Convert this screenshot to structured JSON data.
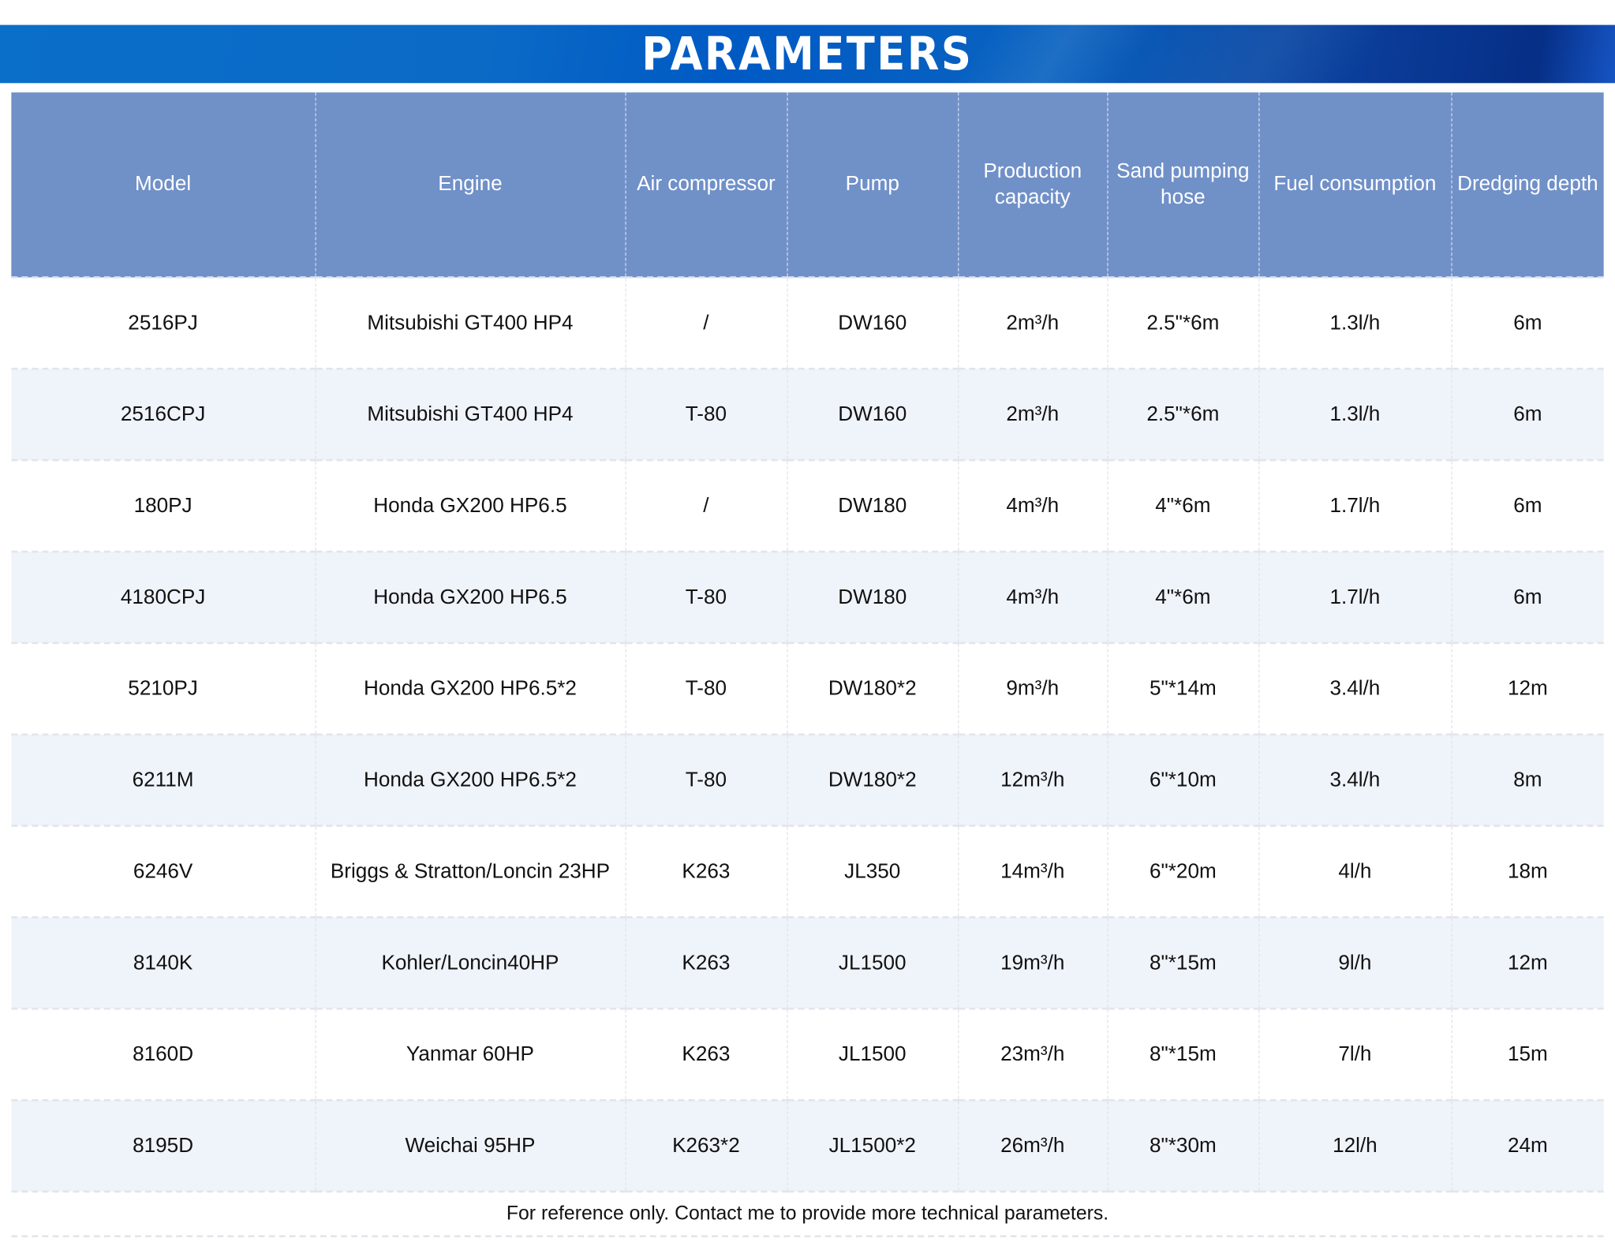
{
  "title": "PARAMETERS",
  "headers": [
    "Model",
    "Engine",
    "Air compressor",
    "Pump",
    "Production capacity",
    "Sand pumping hose",
    "Fuel consumption",
    "Dredging depth"
  ],
  "rows": [
    [
      "2516PJ",
      "Mitsubishi GT400 HP4",
      "/",
      "DW160",
      "2m³/h",
      "2.5\"*6m",
      "1.3l/h",
      "6m"
    ],
    [
      "2516CPJ",
      "Mitsubishi GT400 HP4",
      "T-80",
      "DW160",
      "2m³/h",
      "2.5\"*6m",
      "1.3l/h",
      "6m"
    ],
    [
      "180PJ",
      "Honda GX200 HP6.5",
      "/",
      "DW180",
      "4m³/h",
      "4\"*6m",
      "1.7l/h",
      "6m"
    ],
    [
      "4180CPJ",
      "Honda GX200 HP6.5",
      "T-80",
      "DW180",
      "4m³/h",
      "4\"*6m",
      "1.7l/h",
      "6m"
    ],
    [
      "5210PJ",
      "Honda GX200 HP6.5*2",
      "T-80",
      "DW180*2",
      "9m³/h",
      "5\"*14m",
      "3.4l/h",
      "12m"
    ],
    [
      "6211M",
      "Honda GX200 HP6.5*2",
      "T-80",
      "DW180*2",
      "12m³/h",
      "6\"*10m",
      "3.4l/h",
      "8m"
    ],
    [
      "6246V",
      "Briggs & Stratton/Loncin 23HP",
      "K263",
      "JL350",
      "14m³/h",
      "6\"*20m",
      "4l/h",
      "18m"
    ],
    [
      "8140K",
      "Kohler/Loncin40HP",
      "K263",
      "JL1500",
      "19m³/h",
      "8\"*15m",
      "9l/h",
      "12m"
    ],
    [
      "8160D",
      "Yanmar 60HP",
      "K263",
      "JL1500",
      "23m³/h",
      "8\"*15m",
      "7l/h",
      "15m"
    ],
    [
      "8195D",
      "Weichai 95HP",
      "K263*2",
      "JL1500*2",
      "26m³/h",
      "8\"*30m",
      "12l/h",
      "24m"
    ]
  ],
  "footer": "For reference only. Contact me to provide more technical parameters."
}
